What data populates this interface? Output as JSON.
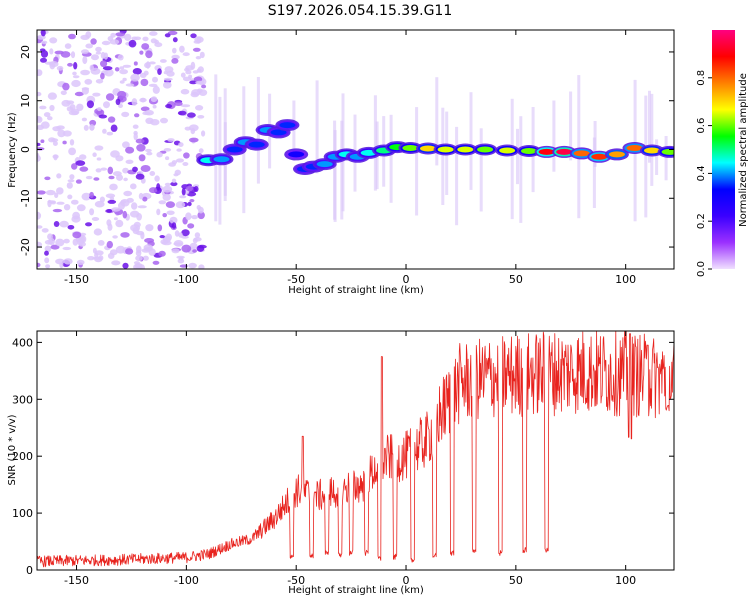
{
  "figure_title": "S197.2026.054.15.39.G11",
  "chart_data": [
    {
      "type": "heatmap",
      "title": "S197.2026.054.15.39.G11",
      "xlabel": "Height of straight line (km)",
      "ylabel": "Frequency (Hz)",
      "xlim": [
        -168,
        122
      ],
      "ylim": [
        -24.5,
        24.5
      ],
      "xticks": [
        -150,
        -100,
        -50,
        0,
        50,
        100
      ],
      "yticks": [
        -20,
        -10,
        0,
        10,
        20
      ],
      "colorbar": {
        "label": "Normalized spectral amplitude",
        "range": [
          0,
          1
        ],
        "ticks": [
          0,
          0.2,
          0.4,
          0.6,
          0.8
        ],
        "tick_labels": [
          "0.0",
          "0.2",
          "0.4",
          "0.6",
          "0.8"
        ],
        "colormap": [
          "#f0e0ff",
          "#9b30ff",
          "#3a00ff",
          "#0000ff",
          "#00ffff",
          "#00ff00",
          "#ffff00",
          "#ff8000",
          "#ff0000",
          "#ff0080"
        ]
      },
      "noise_region_x": [
        -168,
        -92
      ],
      "signal_track": [
        {
          "x": -90,
          "f": -2.2,
          "amp": 0.45
        },
        {
          "x": -84,
          "f": -2.0,
          "amp": 0.4
        },
        {
          "x": -78,
          "f": 0.0,
          "amp": 0.35
        },
        {
          "x": -73,
          "f": 1.5,
          "amp": 0.4
        },
        {
          "x": -68,
          "f": 1.0,
          "amp": 0.35
        },
        {
          "x": -63,
          "f": 4.0,
          "amp": 0.4
        },
        {
          "x": -58,
          "f": 3.5,
          "amp": 0.35
        },
        {
          "x": -54,
          "f": 5.0,
          "amp": 0.35
        },
        {
          "x": -50,
          "f": -1.0,
          "amp": 0.3
        },
        {
          "x": -46,
          "f": -4.0,
          "amp": 0.35
        },
        {
          "x": -42,
          "f": -3.5,
          "amp": 0.35
        },
        {
          "x": -37,
          "f": -3.0,
          "amp": 0.4
        },
        {
          "x": -32,
          "f": -1.5,
          "amp": 0.4
        },
        {
          "x": -27,
          "f": -1.0,
          "amp": 0.45
        },
        {
          "x": -22,
          "f": -1.5,
          "amp": 0.4
        },
        {
          "x": -17,
          "f": -0.7,
          "amp": 0.45
        },
        {
          "x": -10,
          "f": -0.2,
          "amp": 0.5
        },
        {
          "x": -4,
          "f": 0.5,
          "amp": 0.55
        },
        {
          "x": 2,
          "f": 0.3,
          "amp": 0.6
        },
        {
          "x": 10,
          "f": 0.2,
          "amp": 0.7
        },
        {
          "x": 18,
          "f": 0.0,
          "amp": 0.65
        },
        {
          "x": 27,
          "f": 0.0,
          "amp": 0.65
        },
        {
          "x": 36,
          "f": 0.0,
          "amp": 0.6
        },
        {
          "x": 46,
          "f": -0.2,
          "amp": 0.65
        },
        {
          "x": 56,
          "f": -0.3,
          "amp": 0.6
        },
        {
          "x": 64,
          "f": -0.5,
          "amp": 0.9
        },
        {
          "x": 72,
          "f": -0.5,
          "amp": 0.95
        },
        {
          "x": 80,
          "f": -0.8,
          "amp": 0.8
        },
        {
          "x": 88,
          "f": -1.5,
          "amp": 0.85
        },
        {
          "x": 96,
          "f": -1.0,
          "amp": 0.75
        },
        {
          "x": 104,
          "f": 0.3,
          "amp": 0.8
        },
        {
          "x": 112,
          "f": -0.2,
          "amp": 0.7
        },
        {
          "x": 120,
          "f": -0.5,
          "amp": 0.6
        }
      ]
    },
    {
      "type": "line",
      "xlabel": "Height of straight line (km)",
      "ylabel": "SNR (10 * v/v)",
      "xlim": [
        -168,
        122
      ],
      "ylim": [
        0,
        420
      ],
      "xticks": [
        -150,
        -100,
        -50,
        0,
        50,
        100
      ],
      "yticks": [
        0,
        100,
        200,
        300,
        400
      ],
      "color": "#e8231e",
      "series": [
        {
          "name": "SNR",
          "envelope": [
            {
              "x": -168,
              "level": 15
            },
            {
              "x": -130,
              "level": 18
            },
            {
              "x": -100,
              "level": 22
            },
            {
              "x": -90,
              "level": 28
            },
            {
              "x": -80,
              "level": 45
            },
            {
              "x": -70,
              "level": 55
            },
            {
              "x": -60,
              "level": 90
            },
            {
              "x": -50,
              "level": 140
            },
            {
              "x": -40,
              "level": 130
            },
            {
              "x": -30,
              "level": 140
            },
            {
              "x": -20,
              "level": 150
            },
            {
              "x": -10,
              "level": 195
            },
            {
              "x": 0,
              "level": 200
            },
            {
              "x": 10,
              "level": 230
            },
            {
              "x": 15,
              "level": 270
            },
            {
              "x": 25,
              "level": 330
            },
            {
              "x": 40,
              "level": 340
            },
            {
              "x": 60,
              "level": 345
            },
            {
              "x": 80,
              "level": 350
            },
            {
              "x": 100,
              "level": 345
            },
            {
              "x": 122,
              "level": 335
            }
          ],
          "spikes": [
            {
              "x": -11,
              "value": 375
            },
            {
              "x": -47,
              "value": 235
            },
            {
              "x": 102,
              "value": 415
            },
            {
              "x": 110,
              "value": 395
            }
          ],
          "dropouts": [
            {
              "x": -52,
              "value": 20
            },
            {
              "x": -43,
              "value": 20
            },
            {
              "x": -36,
              "value": 25
            },
            {
              "x": -30,
              "value": 20
            },
            {
              "x": -25,
              "value": 25
            },
            {
              "x": -18,
              "value": 25
            },
            {
              "x": -12,
              "value": 15
            },
            {
              "x": -5,
              "value": 18
            },
            {
              "x": 3,
              "value": 12
            },
            {
              "x": 13,
              "value": 20
            },
            {
              "x": 21,
              "value": 25
            },
            {
              "x": 31,
              "value": 30
            },
            {
              "x": 43,
              "value": 25
            },
            {
              "x": 54,
              "value": 30
            },
            {
              "x": 64,
              "value": 30
            },
            {
              "x": 102,
              "value": 230
            },
            {
              "x": 119,
              "value": 280
            }
          ]
        }
      ]
    }
  ]
}
